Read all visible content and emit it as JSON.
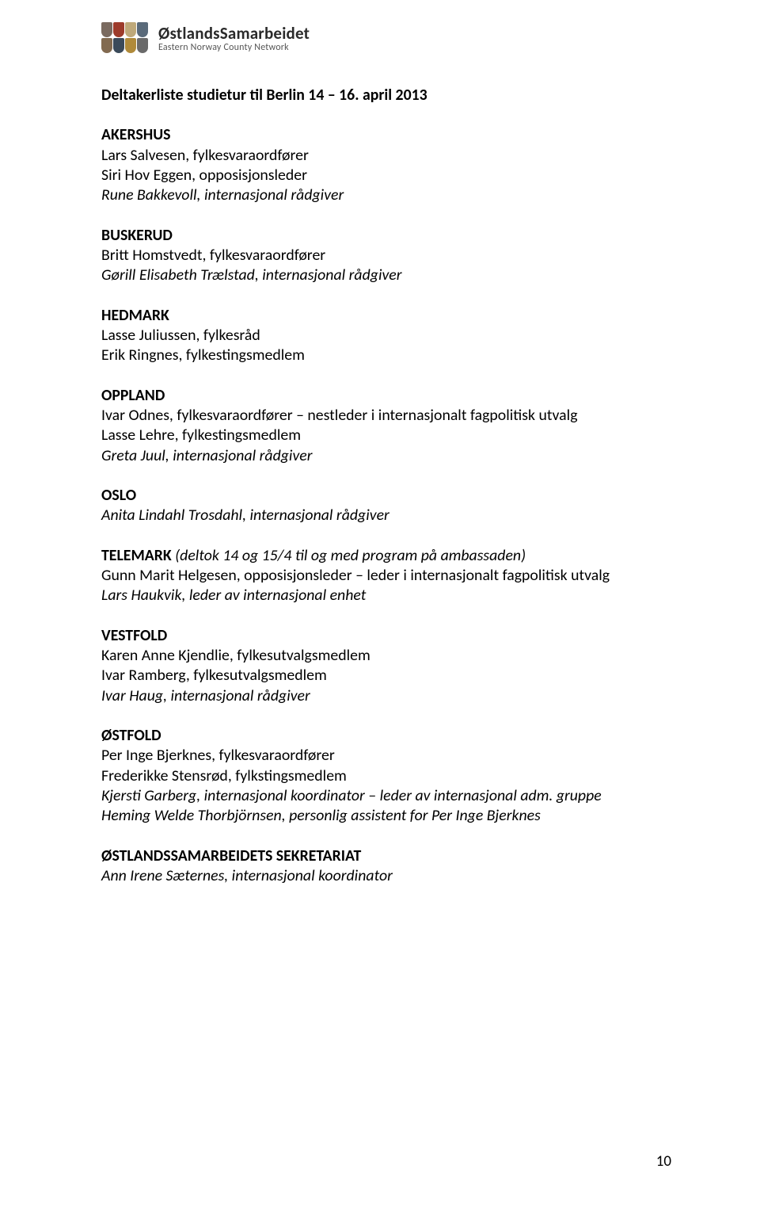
{
  "logo": {
    "main": "ØstlandsSamarbeidet",
    "sub": "Eastern Norway County Network"
  },
  "title": "Deltakerliste studietur til Berlin 14 – 16. april 2013",
  "sections": [
    {
      "heading": "AKERSHUS",
      "entries": [
        {
          "text": "Lars Salvesen, fylkesvaraordfører",
          "italic": false
        },
        {
          "text": "Siri Hov Eggen, opposisjonsleder",
          "italic": false
        },
        {
          "text": "Rune Bakkevoll, internasjonal rådgiver",
          "italic": true
        }
      ]
    },
    {
      "heading": "BUSKERUD",
      "entries": [
        {
          "text": "Britt Homstvedt, fylkesvaraordfører",
          "italic": false
        },
        {
          "text": "Gørill Elisabeth Trælstad, internasjonal rådgiver",
          "italic": true
        }
      ]
    },
    {
      "heading": "HEDMARK",
      "entries": [
        {
          "text": "Lasse Juliussen, fylkesråd",
          "italic": false
        },
        {
          "text": "Erik Ringnes, fylkestingsmedlem",
          "italic": false
        }
      ]
    },
    {
      "heading": "OPPLAND",
      "entries": [
        {
          "text": "Ivar Odnes, fylkesvaraordfører – nestleder i internasjonalt fagpolitisk utvalg",
          "italic": false
        },
        {
          "text": "Lasse Lehre, fylkestingsmedlem",
          "italic": false
        },
        {
          "text": "Greta Juul, internasjonal rådgiver",
          "italic": true
        }
      ]
    },
    {
      "heading": "OSLO",
      "entries": [
        {
          "text": "Anita Lindahl Trosdahl, internasjonal rådgiver",
          "italic": true
        }
      ]
    },
    {
      "heading": "TELEMARK",
      "inline_note": "  (deltok 14 og 15/4 til og med program på ambassaden)",
      "entries": [
        {
          "text": "Gunn Marit Helgesen, opposisjonsleder – leder i internasjonalt fagpolitisk utvalg",
          "italic": false
        },
        {
          "text": "Lars Haukvik, leder av internasjonal enhet",
          "italic": true
        }
      ]
    },
    {
      "heading": "VESTFOLD",
      "entries": [
        {
          "text": "Karen Anne Kjendlie, fylkesutvalgsmedlem",
          "italic": false
        },
        {
          "text": "Ivar Ramberg, fylkesutvalgsmedlem",
          "italic": false
        },
        {
          "text": "Ivar Haug, internasjonal rådgiver",
          "italic": true
        }
      ]
    },
    {
      "heading": "ØSTFOLD",
      "entries": [
        {
          "text": "Per Inge Bjerknes, fylkesvaraordfører",
          "italic": false
        },
        {
          "text": "Frederikke Stensrød, fylkstingsmedlem",
          "italic": false
        },
        {
          "text": "Kjersti Garberg, internasjonal koordinator – leder av internasjonal adm. gruppe",
          "italic": true
        },
        {
          "text": "Heming Welde Thorbjörnsen, personlig assistent for Per Inge Bjerknes",
          "italic": true
        }
      ]
    },
    {
      "heading": "ØSTLANDSSAMARBEIDETS SEKRETARIAT",
      "entries": [
        {
          "text": "Ann Irene Sæternes, internasjonal koordinator",
          "italic": true
        }
      ]
    }
  ],
  "page_number": "10"
}
